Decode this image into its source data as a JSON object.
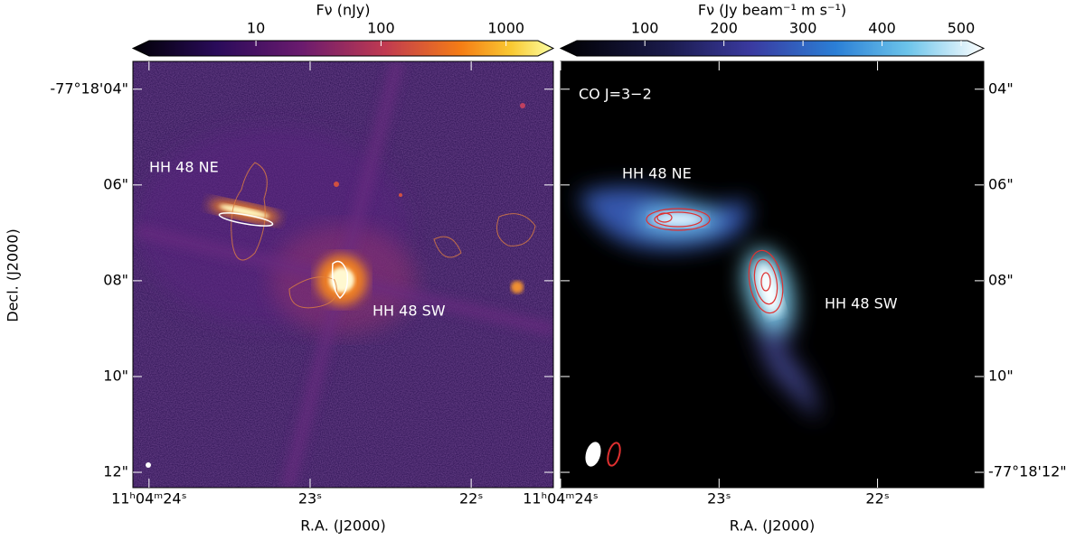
{
  "chart_data": [
    {
      "type": "image",
      "colorbar": {
        "label": "Fν (nJy)",
        "scale": "log",
        "lim": [
          1.4,
          1800
        ],
        "ticks": [
          10,
          100,
          1000
        ]
      },
      "xlabel": "R.A. (J2000)",
      "ylabel": "Decl. (J2000)",
      "xlim": [
        24.1,
        21.49
      ],
      "xticks": [
        {
          "value": 24,
          "label": "11ʰ04ᵐ24ˢ"
        },
        {
          "value": 23,
          "label": "23ˢ"
        },
        {
          "value": 22,
          "label": "22ˢ"
        }
      ],
      "ylim": [
        3.42,
        12.32
      ],
      "yticks": [
        {
          "value": 4,
          "label": "-77°18'04\""
        },
        {
          "value": 6,
          "label": "06\""
        },
        {
          "value": 8,
          "label": "08\""
        },
        {
          "value": 10,
          "label": "10\""
        },
        {
          "value": 12,
          "label": "12\""
        }
      ],
      "ytick_side": "left",
      "annotations": [
        "HH 48 NE",
        "HH 48 SW"
      ]
    },
    {
      "type": "image",
      "colorbar": {
        "label": "Fν (Jy beam⁻¹ m s⁻¹)",
        "scale": "linear",
        "lim": [
          14,
          508
        ],
        "ticks": [
          100,
          200,
          300,
          400,
          500
        ]
      },
      "xlabel": "R.A. (J2000)",
      "xlim": [
        24.0,
        21.33
      ],
      "xticks": [
        {
          "value": 24,
          "label": "11ʰ04ᵐ24ˢ"
        },
        {
          "value": 23,
          "label": "23ˢ"
        },
        {
          "value": 22,
          "label": "22ˢ"
        }
      ],
      "ylim": [
        3.42,
        12.32
      ],
      "yticks": [
        {
          "value": 4,
          "label": "04\""
        },
        {
          "value": 6,
          "label": "06\""
        },
        {
          "value": 8,
          "label": "08\""
        },
        {
          "value": 10,
          "label": "10\""
        },
        {
          "value": 12,
          "label": "-77°18'12\""
        }
      ],
      "ytick_side": "right",
      "annotations": [
        "HH 48 NE",
        "HH 48 SW",
        "CO J=3−2"
      ]
    }
  ]
}
